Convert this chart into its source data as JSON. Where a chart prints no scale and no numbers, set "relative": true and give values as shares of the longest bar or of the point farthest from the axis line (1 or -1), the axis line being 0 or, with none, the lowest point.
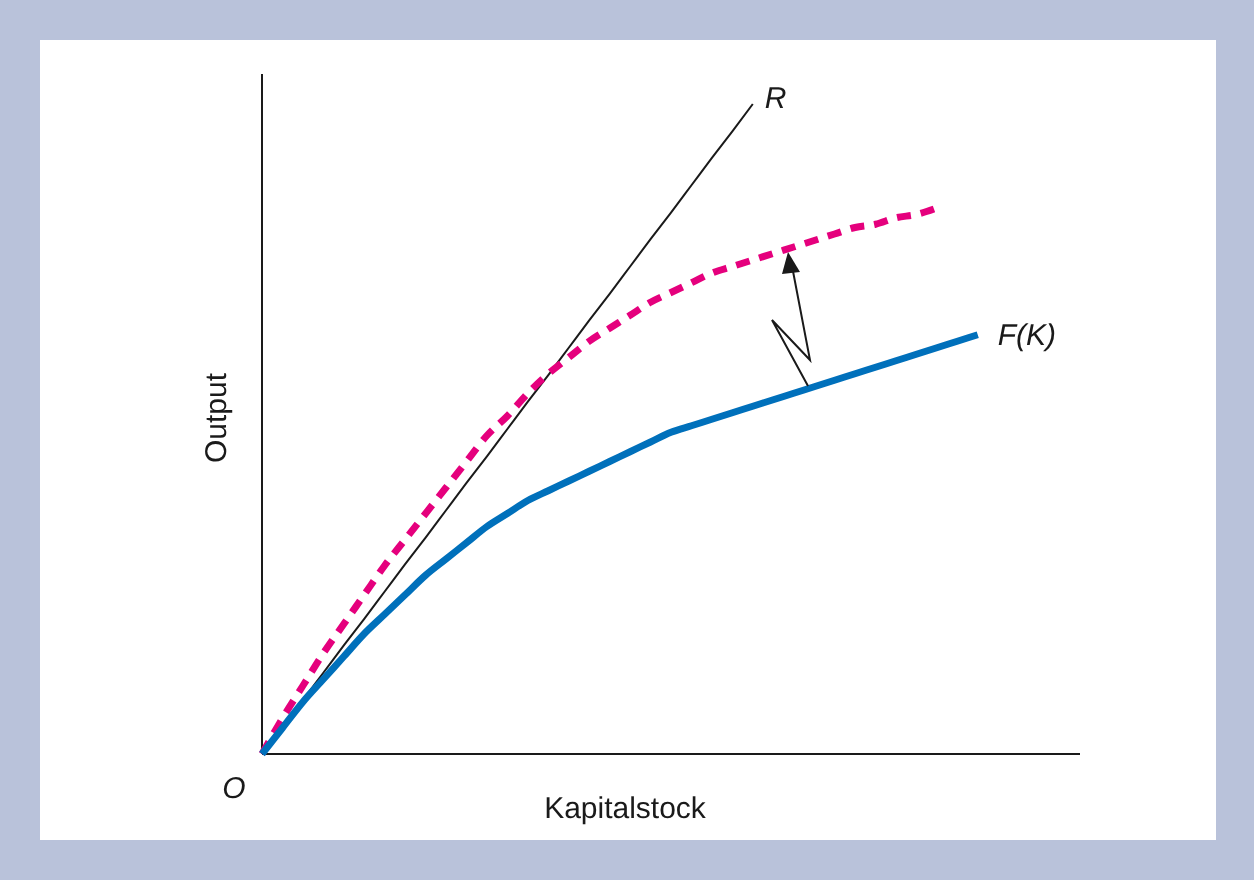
{
  "chart_data": {
    "type": "line",
    "relative": true,
    "xlabel": "Kapitalstock",
    "ylabel": "Output",
    "annotations": [
      "O"
    ],
    "marker": "none",
    "categories": [
      null,
      null,
      null,
      null,
      null,
      null,
      null,
      null,
      null,
      null,
      null,
      null,
      null,
      null,
      null,
      null,
      null,
      null,
      null,
      null,
      null,
      null,
      null,
      null,
      null,
      null,
      null,
      null,
      null,
      null,
      null,
      null,
      null,
      null,
      null,
      null,
      null,
      null,
      null,
      null,
      null
    ],
    "series": [
      {
        "name": "R",
        "color": "#1a1a1a",
        "line_style": "solid",
        "values": [
          0,
          0.042,
          0.083,
          0.125,
          0.167,
          0.208,
          0.25,
          0.292,
          0.333,
          0.375,
          0.417,
          0.458,
          0.5,
          0.542,
          0.583,
          0.625,
          0.667,
          0.708,
          0.75,
          0.792,
          0.833,
          0.875,
          0.917,
          0.958,
          1,
          null,
          null,
          null,
          null,
          null,
          null,
          null,
          null,
          null,
          null,
          null,
          null,
          null,
          null,
          null,
          null
        ]
      },
      {
        "color": "#e5007d",
        "line_style": "dashed",
        "values": [
          0,
          0.055,
          0.105,
          0.155,
          0.2,
          0.245,
          0.29,
          0.33,
          0.37,
          0.41,
          0.45,
          0.49,
          0.52,
          0.555,
          0.585,
          0.61,
          0.635,
          0.655,
          0.675,
          0.695,
          0.71,
          0.725,
          0.74,
          0.75,
          0.76,
          0.77,
          0.78,
          0.79,
          0.8,
          0.81,
          0.815,
          0.825,
          0.83,
          0.84,
          null,
          null,
          null,
          null,
          null,
          null,
          null
        ]
      },
      {
        "name": "F(K)",
        "color": "#0070bb",
        "line_style": "solid",
        "values": [
          0,
          0.04,
          0.08,
          0.115,
          0.15,
          0.185,
          0.215,
          0.245,
          0.275,
          0.3,
          0.325,
          0.35,
          0.37,
          0.39,
          0.405,
          0.42,
          0.435,
          0.45,
          0.465,
          0.48,
          0.495,
          0.505,
          0.515,
          0.525,
          0.535,
          0.545,
          0.555,
          0.565,
          0.575,
          0.585,
          0.595,
          0.605,
          0.615,
          0.625,
          0.635,
          0.645,
          null,
          null,
          null,
          null,
          null
        ]
      }
    ]
  }
}
